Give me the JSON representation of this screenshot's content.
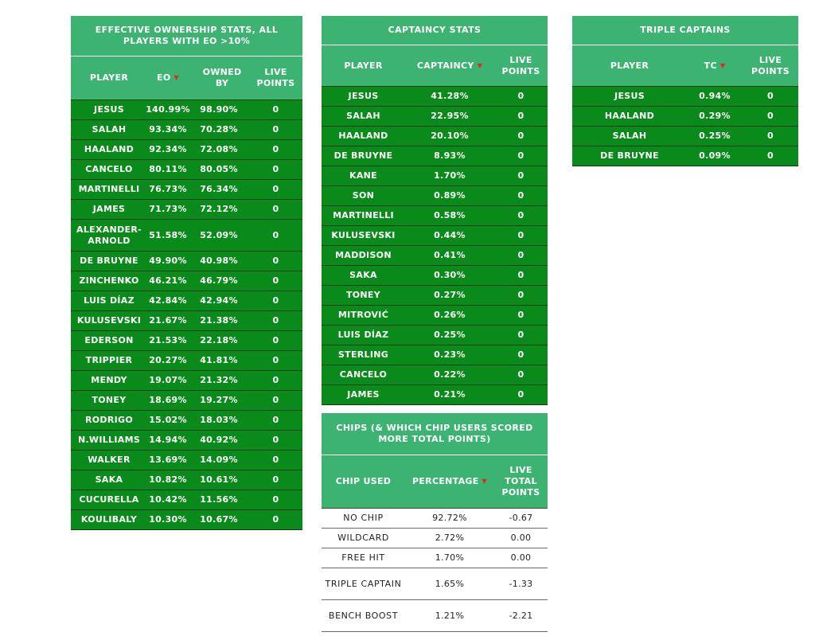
{
  "eo_table": {
    "title": "EFFECTIVE OWNERSHIP STATS, ALL PLAYERS WITH EO >10%",
    "headers": [
      "PLAYER",
      "EO",
      "OWNED BY",
      "LIVE POINTS"
    ],
    "sort_indicator": "▼",
    "rows": [
      {
        "player": "JESUS",
        "eo": "140.99%",
        "owned": "98.90%",
        "live": "0"
      },
      {
        "player": "SALAH",
        "eo": "93.34%",
        "owned": "70.28%",
        "live": "0"
      },
      {
        "player": "HAALAND",
        "eo": "92.34%",
        "owned": "72.08%",
        "live": "0"
      },
      {
        "player": "CANCELO",
        "eo": "80.11%",
        "owned": "80.05%",
        "live": "0"
      },
      {
        "player": "MARTINELLI",
        "eo": "76.73%",
        "owned": "76.34%",
        "live": "0"
      },
      {
        "player": "JAMES",
        "eo": "71.73%",
        "owned": "72.12%",
        "live": "0"
      },
      {
        "player": "ALEXANDER-ARNOLD",
        "eo": "51.58%",
        "owned": "52.09%",
        "live": "0"
      },
      {
        "player": "DE BRUYNE",
        "eo": "49.90%",
        "owned": "40.98%",
        "live": "0"
      },
      {
        "player": "ZINCHENKO",
        "eo": "46.21%",
        "owned": "46.79%",
        "live": "0"
      },
      {
        "player": "LUIS DÍAZ",
        "eo": "42.84%",
        "owned": "42.94%",
        "live": "0"
      },
      {
        "player": "KULUSEVSKI",
        "eo": "21.67%",
        "owned": "21.38%",
        "live": "0"
      },
      {
        "player": "EDERSON",
        "eo": "21.53%",
        "owned": "22.18%",
        "live": "0"
      },
      {
        "player": "TRIPPIER",
        "eo": "20.27%",
        "owned": "41.81%",
        "live": "0"
      },
      {
        "player": "MENDY",
        "eo": "19.07%",
        "owned": "21.32%",
        "live": "0"
      },
      {
        "player": "TONEY",
        "eo": "18.69%",
        "owned": "19.27%",
        "live": "0"
      },
      {
        "player": "RODRIGO",
        "eo": "15.02%",
        "owned": "18.03%",
        "live": "0"
      },
      {
        "player": "N.WILLIAMS",
        "eo": "14.94%",
        "owned": "40.92%",
        "live": "0"
      },
      {
        "player": "WALKER",
        "eo": "13.69%",
        "owned": "14.09%",
        "live": "0"
      },
      {
        "player": "SAKA",
        "eo": "10.82%",
        "owned": "10.61%",
        "live": "0"
      },
      {
        "player": "CUCURELLA",
        "eo": "10.42%",
        "owned": "11.56%",
        "live": "0"
      },
      {
        "player": "KOULIBALY",
        "eo": "10.30%",
        "owned": "10.67%",
        "live": "0"
      }
    ]
  },
  "captaincy_table": {
    "title": "CAPTAINCY STATS",
    "headers": [
      "PLAYER",
      "CAPTAINCY",
      "LIVE POINTS"
    ],
    "sort_indicator": "▼",
    "rows": [
      {
        "player": "JESUS",
        "captaincy": "41.28%",
        "live": "0"
      },
      {
        "player": "SALAH",
        "captaincy": "22.95%",
        "live": "0"
      },
      {
        "player": "HAALAND",
        "captaincy": "20.10%",
        "live": "0"
      },
      {
        "player": "DE BRUYNE",
        "captaincy": "8.93%",
        "live": "0"
      },
      {
        "player": "KANE",
        "captaincy": "1.70%",
        "live": "0"
      },
      {
        "player": "SON",
        "captaincy": "0.89%",
        "live": "0"
      },
      {
        "player": "MARTINELLI",
        "captaincy": "0.58%",
        "live": "0"
      },
      {
        "player": "KULUSEVSKI",
        "captaincy": "0.44%",
        "live": "0"
      },
      {
        "player": "MADDISON",
        "captaincy": "0.41%",
        "live": "0"
      },
      {
        "player": "SAKA",
        "captaincy": "0.30%",
        "live": "0"
      },
      {
        "player": "TONEY",
        "captaincy": "0.27%",
        "live": "0"
      },
      {
        "player": "MITROVIĆ",
        "captaincy": "0.26%",
        "live": "0"
      },
      {
        "player": "LUIS DÍAZ",
        "captaincy": "0.25%",
        "live": "0"
      },
      {
        "player": "STERLING",
        "captaincy": "0.23%",
        "live": "0"
      },
      {
        "player": "CANCELO",
        "captaincy": "0.22%",
        "live": "0"
      },
      {
        "player": "JAMES",
        "captaincy": "0.21%",
        "live": "0"
      }
    ]
  },
  "triple_captain_table": {
    "title": "TRIPLE CAPTAINS",
    "headers": [
      "PLAYER",
      "TC",
      "LIVE POINTS"
    ],
    "sort_indicator": "▼",
    "rows": [
      {
        "player": "JESUS",
        "tc": "0.94%",
        "live": "0"
      },
      {
        "player": "HAALAND",
        "tc": "0.29%",
        "live": "0"
      },
      {
        "player": "SALAH",
        "tc": "0.25%",
        "live": "0"
      },
      {
        "player": "DE BRUYNE",
        "tc": "0.09%",
        "live": "0"
      }
    ]
  },
  "chips_table": {
    "title": "CHIPS (& WHICH CHIP USERS SCORED MORE TOTAL POINTS)",
    "headers": [
      "CHIP USED",
      "PERCENTAGE",
      "LIVE TOTAL POINTS"
    ],
    "sort_indicator": "▼",
    "rows": [
      {
        "chip": "NO CHIP",
        "percentage": "92.72%",
        "points": "-0.67"
      },
      {
        "chip": "WILDCARD",
        "percentage": "2.72%",
        "points": "0.00"
      },
      {
        "chip": "FREE HIT",
        "percentage": "1.70%",
        "points": "0.00"
      },
      {
        "chip": "TRIPLE CAPTAIN",
        "percentage": "1.65%",
        "points": "-1.33"
      },
      {
        "chip": "BENCH BOOST",
        "percentage": "1.21%",
        "points": "-2.21"
      }
    ]
  }
}
